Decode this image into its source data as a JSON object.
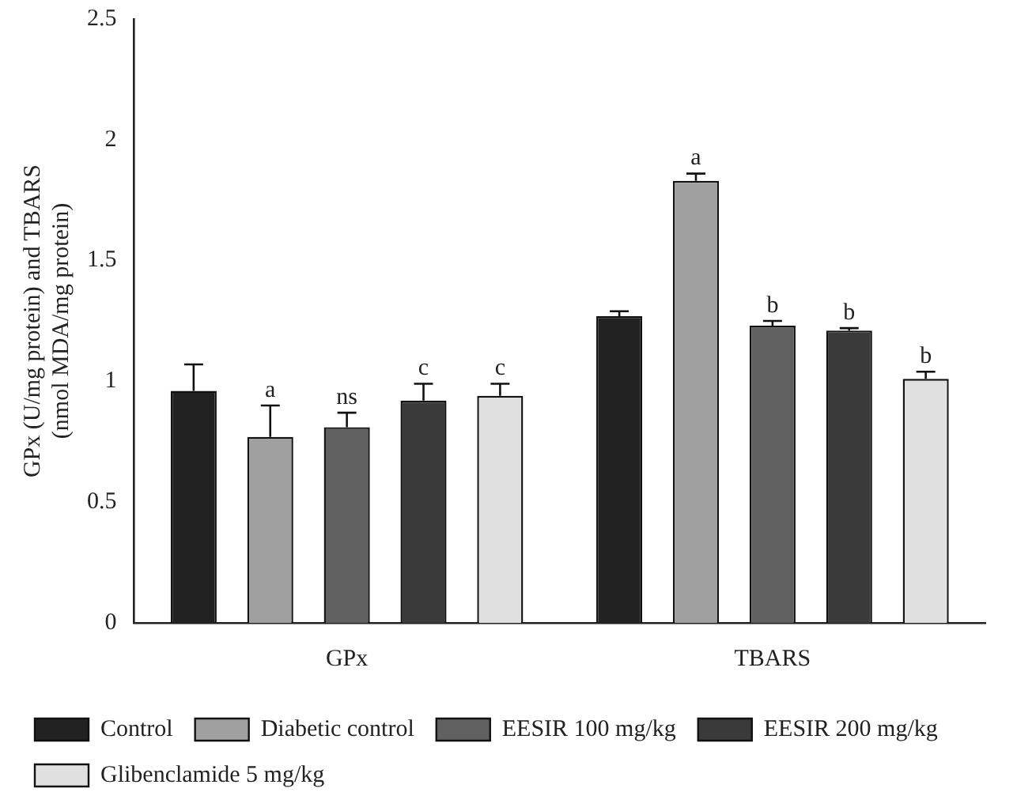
{
  "chart_data": {
    "type": "bar",
    "ylabel": "GPx (U/mg protein) and TBARS\n(nmol MDA/mg protein)",
    "categories": [
      "GPx",
      "TBARS"
    ],
    "ylim": [
      0,
      2.5
    ],
    "yticks": [
      0,
      0.5,
      1,
      1.5,
      2,
      2.5
    ],
    "grid": false,
    "legend": "bottom",
    "series": [
      {
        "name": "Control",
        "color": "#222222",
        "values": [
          0.96,
          1.27
        ],
        "errors": [
          0.11,
          0.02
        ],
        "value_labels": [
          null,
          null
        ]
      },
      {
        "name": "Diabetic control",
        "color": "#a0a0a0",
        "values": [
          0.77,
          1.83
        ],
        "errors": [
          0.13,
          0.03
        ],
        "value_labels": [
          "a",
          "a"
        ]
      },
      {
        "name": "EESIR 100 mg/kg",
        "color": "#606060",
        "values": [
          0.81,
          1.23
        ],
        "errors": [
          0.06,
          0.02
        ],
        "value_labels": [
          "ns",
          "b"
        ]
      },
      {
        "name": "EESIR 200 mg/kg",
        "color": "#3a3a3a",
        "values": [
          0.92,
          1.21
        ],
        "errors": [
          0.07,
          0.01
        ],
        "value_labels": [
          "c",
          "b"
        ]
      },
      {
        "name": "Glibenclamide 5 mg/kg",
        "color": "#e0e0e0",
        "values": [
          0.94,
          1.01
        ],
        "errors": [
          0.05,
          0.03
        ],
        "value_labels": [
          "c",
          "b"
        ]
      }
    ]
  }
}
